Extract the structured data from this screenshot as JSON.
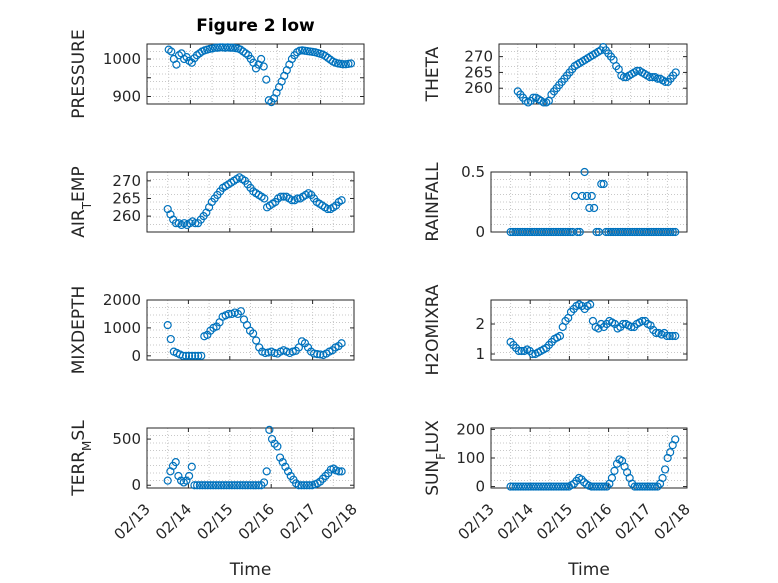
{
  "figure": {
    "title": "Figure 2 low",
    "marker_color": "#0072bd"
  },
  "chart_data": [
    {
      "type": "scatter",
      "ylabel": "PRESSURE",
      "title": "Figure 2 low",
      "xlim": [
        0,
        5
      ],
      "ylim": [
        880,
        1040
      ],
      "yticks": [
        900,
        950,
        1000
      ],
      "yticklabels": [
        "900",
        "",
        "1000"
      ],
      "y": [
        1025,
        1020,
        1000,
        985,
        1010,
        1015,
        1000,
        1005,
        995,
        990,
        1002,
        1010,
        1015,
        1020,
        1023,
        1025,
        1027,
        1028,
        1030,
        1030,
        1031,
        1031,
        1030,
        1031,
        1030,
        1030,
        1029,
        1028,
        1025,
        1020,
        1015,
        1010,
        1000,
        990,
        975,
        985,
        1000,
        980,
        945,
        890,
        885,
        895,
        910,
        925,
        940,
        955,
        970,
        985,
        1000,
        1010,
        1018,
        1022,
        1023,
        1022,
        1021,
        1020,
        1019,
        1018,
        1016,
        1014,
        1012,
        1008,
        1003,
        998,
        993,
        990,
        988,
        987,
        986,
        986,
        987,
        988
      ]
    },
    {
      "type": "scatter",
      "ylabel": "THETA",
      "xlim": [
        0,
        5
      ],
      "ylim": [
        255,
        274
      ],
      "yticks": [
        260,
        265,
        270
      ],
      "yticklabels": [
        "260",
        "265",
        "270"
      ],
      "y": [
        259,
        258,
        257,
        256,
        255.5,
        256,
        257,
        257,
        256.5,
        256,
        255.5,
        255.5,
        256,
        258,
        259,
        260,
        261,
        262,
        263,
        264,
        265,
        266,
        267,
        267.5,
        268,
        268.5,
        269,
        269.5,
        270,
        270.5,
        271,
        271.5,
        272,
        273,
        272,
        271,
        270,
        269,
        267,
        266,
        264,
        263.5,
        263.5,
        264,
        264.5,
        265,
        265.5,
        265.5,
        265,
        264.5,
        264,
        263.5,
        263.5,
        263.5,
        263,
        263,
        262.5,
        262,
        262,
        263,
        264,
        265
      ]
    },
    {
      "type": "scatter",
      "ylabel": "AIR_TEMP",
      "xlim": [
        0,
        5
      ],
      "ylim": [
        255.5,
        272.5
      ],
      "yticks": [
        260,
        265,
        270
      ],
      "yticklabels": [
        "260",
        "265",
        "270"
      ],
      "y": [
        262,
        260.5,
        259,
        258,
        258,
        257.5,
        258,
        257.5,
        258,
        258.5,
        258,
        258,
        259,
        260,
        261,
        262.5,
        264,
        265,
        266,
        267,
        268,
        268.5,
        269,
        269.5,
        270,
        270.5,
        271,
        270.5,
        270,
        269,
        268,
        267,
        266.5,
        266,
        265.5,
        265,
        262.5,
        263,
        263.5,
        264,
        265,
        265.5,
        265.5,
        265.5,
        265,
        264.5,
        264.5,
        265,
        265,
        265.5,
        266,
        266.5,
        266,
        265,
        264,
        263.5,
        263,
        262.5,
        262,
        262,
        262.5,
        263,
        264,
        264.5
      ]
    },
    {
      "type": "scatter",
      "ylabel": "RAINFALL",
      "xlim": [
        0,
        5
      ],
      "ylim": [
        0,
        0.5
      ],
      "yticks": [
        0,
        0.5
      ],
      "yticklabels": [
        "0",
        "0.5"
      ],
      "y": [
        0,
        0,
        0,
        0,
        0,
        0,
        0,
        0,
        0,
        0,
        0,
        0,
        0,
        0,
        0,
        0,
        0,
        0,
        0,
        0,
        0,
        0,
        0,
        0,
        0,
        0,
        0,
        0.3,
        0,
        0,
        0.3,
        0.5,
        0.3,
        0.2,
        0.3,
        0.2,
        0,
        0,
        0.4,
        0.4,
        0,
        0,
        0,
        0,
        0,
        0,
        0,
        0,
        0,
        0,
        0,
        0,
        0,
        0,
        0,
        0,
        0,
        0,
        0,
        0,
        0,
        0,
        0,
        0,
        0,
        0,
        0,
        0,
        0,
        0
      ]
    },
    {
      "type": "scatter",
      "ylabel": "MIXDEPTH",
      "xlim": [
        0,
        5
      ],
      "ylim": [
        -150,
        2000
      ],
      "yticks": [
        0,
        1000,
        2000
      ],
      "yticklabels": [
        "0",
        "1000",
        "2000"
      ],
      "y": [
        1100,
        600,
        150,
        100,
        50,
        0,
        0,
        0,
        0,
        0,
        0,
        0,
        700,
        750,
        900,
        1000,
        1050,
        1200,
        1400,
        1450,
        1500,
        1500,
        1550,
        1500,
        1600,
        1300,
        1100,
        900,
        800,
        550,
        300,
        150,
        100,
        120,
        150,
        100,
        80,
        150,
        200,
        150,
        100,
        150,
        180,
        300,
        520,
        450,
        300,
        150,
        80,
        60,
        50,
        30,
        80,
        150,
        200,
        300,
        350,
        450
      ]
    },
    {
      "type": "scatter",
      "ylabel": "H2OMIXRA",
      "xlim": [
        0,
        5
      ],
      "ylim": [
        0.8,
        2.8
      ],
      "yticks": [
        1,
        2
      ],
      "yticklabels": [
        "1",
        "2"
      ],
      "y": [
        1.4,
        1.3,
        1.2,
        1.1,
        1.1,
        1.1,
        1.15,
        1.1,
        1.0,
        1.0,
        1.05,
        1.1,
        1.15,
        1.2,
        1.3,
        1.4,
        1.5,
        1.55,
        1.6,
        1.9,
        2.1,
        2.2,
        2.4,
        2.5,
        2.6,
        2.65,
        2.6,
        2.5,
        2.6,
        2.65,
        2.1,
        1.9,
        1.85,
        2.0,
        1.9,
        2.0,
        2.1,
        2.05,
        2.0,
        1.85,
        1.9,
        2.0,
        2.0,
        1.95,
        1.9,
        1.9,
        2.0,
        2.05,
        2.1,
        2.1,
        2.0,
        1.95,
        1.8,
        1.7,
        1.7,
        1.65,
        1.7,
        1.6,
        1.6,
        1.6,
        1.6
      ]
    },
    {
      "type": "scatter",
      "ylabel": "TERR_MSL",
      "xlim": [
        0,
        5
      ],
      "ylim": [
        -30,
        620
      ],
      "yticks": [
        0,
        500
      ],
      "yticklabels": [
        "0",
        "500"
      ],
      "y": [
        50,
        150,
        210,
        250,
        100,
        50,
        30,
        50,
        100,
        200,
        0,
        0,
        0,
        0,
        0,
        0,
        0,
        0,
        0,
        0,
        0,
        0,
        0,
        0,
        0,
        0,
        0,
        0,
        0,
        0,
        0,
        0,
        0,
        0,
        0,
        0,
        30,
        150,
        600,
        500,
        450,
        420,
        300,
        250,
        200,
        150,
        100,
        60,
        20,
        0,
        0,
        0,
        0,
        0,
        0,
        10,
        20,
        40,
        70,
        100,
        130,
        170,
        180,
        160,
        150,
        150
      ]
    },
    {
      "type": "scatter",
      "ylabel": "SUN_FLUX",
      "xlim": [
        0,
        5
      ],
      "ylim": [
        -5,
        205
      ],
      "yticks": [
        0,
        100,
        200
      ],
      "yticklabels": [
        "0",
        "100",
        "200"
      ],
      "y": [
        0,
        0,
        0,
        0,
        0,
        0,
        0,
        0,
        0,
        0,
        0,
        0,
        0,
        0,
        0,
        0,
        0,
        0,
        0,
        0,
        0,
        0,
        0,
        0,
        5,
        10,
        20,
        30,
        25,
        15,
        8,
        3,
        0,
        0,
        0,
        0,
        0,
        0,
        0,
        10,
        30,
        55,
        80,
        95,
        90,
        70,
        50,
        30,
        10,
        0,
        0,
        0,
        0,
        0,
        0,
        0,
        0,
        0,
        0,
        10,
        30,
        60,
        100,
        120,
        145,
        165
      ]
    }
  ],
  "xaxis": {
    "xticklabels": [
      "02/13",
      "02/14",
      "02/15",
      "02/16",
      "02/17",
      "02/18"
    ],
    "xlabel": "Time"
  },
  "x_range": [
    0.5,
    4.7
  ]
}
